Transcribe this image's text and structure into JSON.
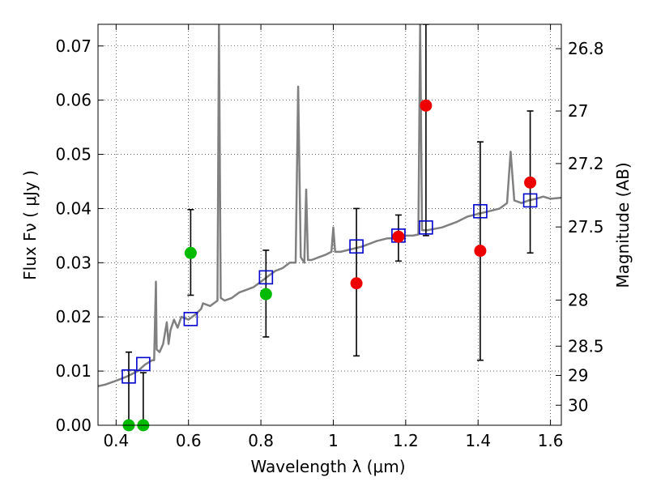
{
  "chart_data": {
    "type": "scatter",
    "xlabel": "Wavelength  λ (μm)",
    "ylabel": "Flux  Fν  ( μJy )",
    "y2label": "Magnitude (AB)",
    "xlim": [
      0.35,
      1.63
    ],
    "ylim": [
      0.0,
      0.074
    ],
    "grid": true,
    "x_ticks": [
      0.4,
      0.6,
      0.8,
      1.0,
      1.2,
      1.4,
      1.6
    ],
    "x_tick_labels": [
      "0.4",
      "0.6",
      "0.8",
      "1",
      "1.2",
      "1.4",
      "1.6"
    ],
    "y_ticks": [
      0.0,
      0.01,
      0.02,
      0.03,
      0.04,
      0.05,
      0.06,
      0.07
    ],
    "y_tick_labels": [
      "0.00",
      "0.01",
      "0.02",
      "0.03",
      "0.04",
      "0.05",
      "0.06",
      "0.07"
    ],
    "y2_ticks": [
      {
        "label": "26.8",
        "flux": 0.0695
      },
      {
        "label": "27",
        "flux": 0.058
      },
      {
        "label": "27.2",
        "flux": 0.0483
      },
      {
        "label": "27.5",
        "flux": 0.0366
      },
      {
        "label": "28",
        "flux": 0.0231
      },
      {
        "label": "28.5",
        "flux": 0.0146
      },
      {
        "label": "29",
        "flux": 0.0092
      },
      {
        "label": "30",
        "flux": 0.0037
      }
    ],
    "model_spectrum": {
      "color": "#808080",
      "points": [
        [
          0.35,
          0.0072
        ],
        [
          0.37,
          0.0075
        ],
        [
          0.4,
          0.0082
        ],
        [
          0.43,
          0.009
        ],
        [
          0.46,
          0.01
        ],
        [
          0.48,
          0.0112
        ],
        [
          0.5,
          0.012
        ],
        [
          0.505,
          0.012
        ],
        [
          0.51,
          0.0265
        ],
        [
          0.512,
          0.014
        ],
        [
          0.52,
          0.0135
        ],
        [
          0.53,
          0.015
        ],
        [
          0.54,
          0.019
        ],
        [
          0.545,
          0.015
        ],
        [
          0.55,
          0.0175
        ],
        [
          0.56,
          0.0195
        ],
        [
          0.57,
          0.018
        ],
        [
          0.58,
          0.02
        ],
        [
          0.6,
          0.0195
        ],
        [
          0.62,
          0.0205
        ],
        [
          0.635,
          0.0215
        ],
        [
          0.64,
          0.0225
        ],
        [
          0.66,
          0.022
        ],
        [
          0.68,
          0.023
        ],
        [
          0.684,
          0.074
        ],
        [
          0.689,
          0.0235
        ],
        [
          0.7,
          0.023
        ],
        [
          0.72,
          0.0235
        ],
        [
          0.74,
          0.0245
        ],
        [
          0.76,
          0.025
        ],
        [
          0.78,
          0.0255
        ],
        [
          0.8,
          0.0265
        ],
        [
          0.82,
          0.0275
        ],
        [
          0.84,
          0.0285
        ],
        [
          0.86,
          0.029
        ],
        [
          0.88,
          0.03
        ],
        [
          0.896,
          0.03
        ],
        [
          0.903,
          0.0625
        ],
        [
          0.91,
          0.031
        ],
        [
          0.92,
          0.03
        ],
        [
          0.925,
          0.0435
        ],
        [
          0.93,
          0.0305
        ],
        [
          0.94,
          0.0305
        ],
        [
          0.96,
          0.031
        ],
        [
          0.98,
          0.0315
        ],
        [
          0.995,
          0.032
        ],
        [
          1.0,
          0.0365
        ],
        [
          1.005,
          0.032
        ],
        [
          1.02,
          0.032
        ],
        [
          1.05,
          0.0325
        ],
        [
          1.08,
          0.033
        ],
        [
          1.1,
          0.0335
        ],
        [
          1.12,
          0.034
        ],
        [
          1.15,
          0.0345
        ],
        [
          1.18,
          0.0345
        ],
        [
          1.2,
          0.035
        ],
        [
          1.22,
          0.035
        ],
        [
          1.235,
          0.0352
        ],
        [
          1.24,
          0.074
        ],
        [
          1.245,
          0.036
        ],
        [
          1.26,
          0.036
        ],
        [
          1.3,
          0.0365
        ],
        [
          1.34,
          0.0375
        ],
        [
          1.37,
          0.0385
        ],
        [
          1.4,
          0.039
        ],
        [
          1.43,
          0.0395
        ],
        [
          1.46,
          0.04
        ],
        [
          1.48,
          0.041
        ],
        [
          1.49,
          0.0505
        ],
        [
          1.5,
          0.0415
        ],
        [
          1.52,
          0.041
        ],
        [
          1.54,
          0.0415
        ],
        [
          1.56,
          0.0418
        ],
        [
          1.58,
          0.0422
        ],
        [
          1.6,
          0.0418
        ],
        [
          1.63,
          0.042
        ]
      ]
    },
    "model_bandpass": {
      "color": "#0000cc",
      "points": [
        {
          "x": 0.435,
          "y": 0.009
        },
        {
          "x": 0.475,
          "y": 0.0113
        },
        {
          "x": 0.606,
          "y": 0.0196
        },
        {
          "x": 0.814,
          "y": 0.0273
        },
        {
          "x": 1.064,
          "y": 0.033
        },
        {
          "x": 1.18,
          "y": 0.035
        },
        {
          "x": 1.256,
          "y": 0.0365
        },
        {
          "x": 1.406,
          "y": 0.0395
        },
        {
          "x": 1.544,
          "y": 0.0415
        }
      ]
    },
    "observed": [
      {
        "x": 0.435,
        "y": 0.0,
        "color": "#00bb00",
        "err_low": 0.0,
        "err_high": 0.0135
      },
      {
        "x": 0.475,
        "y": 0.0,
        "color": "#00bb00",
        "err_low": 0.0,
        "err_high": 0.0097
      },
      {
        "x": 0.606,
        "y": 0.0318,
        "color": "#00bb00",
        "err_low": 0.024,
        "err_high": 0.0398
      },
      {
        "x": 0.814,
        "y": 0.0242,
        "color": "#00bb00",
        "err_low": 0.0163,
        "err_high": 0.0323
      },
      {
        "x": 1.064,
        "y": 0.0262,
        "color": "#ee0000",
        "err_low": 0.0128,
        "err_high": 0.04
      },
      {
        "x": 1.18,
        "y": 0.0348,
        "color": "#ee0000",
        "err_low": 0.0303,
        "err_high": 0.0388
      },
      {
        "x": 1.256,
        "y": 0.059,
        "color": "#ee0000",
        "err_low": 0.035,
        "err_high": 0.074
      },
      {
        "x": 1.406,
        "y": 0.0322,
        "color": "#ee0000",
        "err_low": 0.012,
        "err_high": 0.0523
      },
      {
        "x": 1.544,
        "y": 0.0448,
        "color": "#ee0000",
        "err_low": 0.0318,
        "err_high": 0.058
      }
    ]
  }
}
